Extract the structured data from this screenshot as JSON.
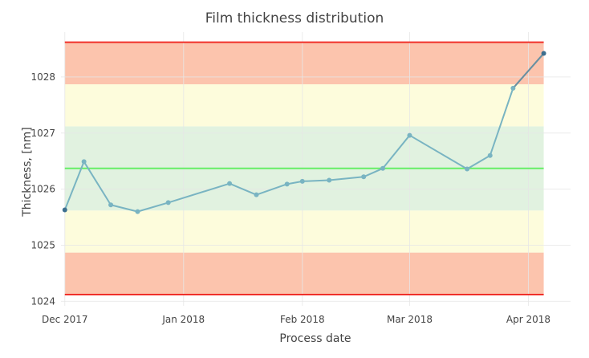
{
  "chart_data": {
    "type": "line",
    "title": "Film thickness distribution",
    "xlabel": "Process date",
    "ylabel": "Thickness, [nm]",
    "x_ticks": [
      "2017-12-01",
      "2018-01-01",
      "2018-02-01",
      "2018-03-01",
      "2018-04-01"
    ],
    "x_tick_labels": [
      "Dec 2017",
      "Jan 2018",
      "Feb 2018",
      "Mar 2018",
      "Apr 2018"
    ],
    "y_ticks": [
      1024,
      1025,
      1026,
      1027,
      1028
    ],
    "xlim": [
      "2017-11-30",
      "2018-04-12"
    ],
    "ylim": [
      1023.92,
      1028.8
    ],
    "grid": true,
    "bands": [
      {
        "from": 1024.12,
        "to": 1024.87,
        "color": "#fcc4ad"
      },
      {
        "from": 1024.87,
        "to": 1025.62,
        "color": "#fdfcdc"
      },
      {
        "from": 1025.62,
        "to": 1027.12,
        "color": "#e1f2e0"
      },
      {
        "from": 1027.12,
        "to": 1027.87,
        "color": "#fdfcdc"
      },
      {
        "from": 1027.87,
        "to": 1028.62,
        "color": "#fcc4ad"
      }
    ],
    "limit_lines": [
      {
        "value": 1024.12,
        "color": "#f0302a"
      },
      {
        "value": 1028.62,
        "color": "#f0302a"
      },
      {
        "value": 1026.37,
        "color": "#66ee66"
      }
    ],
    "series": [
      {
        "color": "#79b4c2",
        "x": [
          "2017-12-01",
          "2017-12-06",
          "2017-12-13",
          "2017-12-20",
          "2017-12-28",
          "2018-01-13",
          "2018-01-20",
          "2018-01-28",
          "2018-02-01",
          "2018-02-08",
          "2018-02-17",
          "2018-02-22",
          "2018-03-01",
          "2018-03-16",
          "2018-03-22",
          "2018-03-28",
          "2018-04-05"
        ],
        "values": [
          1025.63,
          1026.49,
          1025.72,
          1025.6,
          1025.76,
          1026.1,
          1025.9,
          1026.09,
          1026.14,
          1026.16,
          1026.22,
          1026.37,
          1026.96,
          1026.36,
          1026.6,
          1027.8,
          1028.42
        ]
      }
    ]
  }
}
